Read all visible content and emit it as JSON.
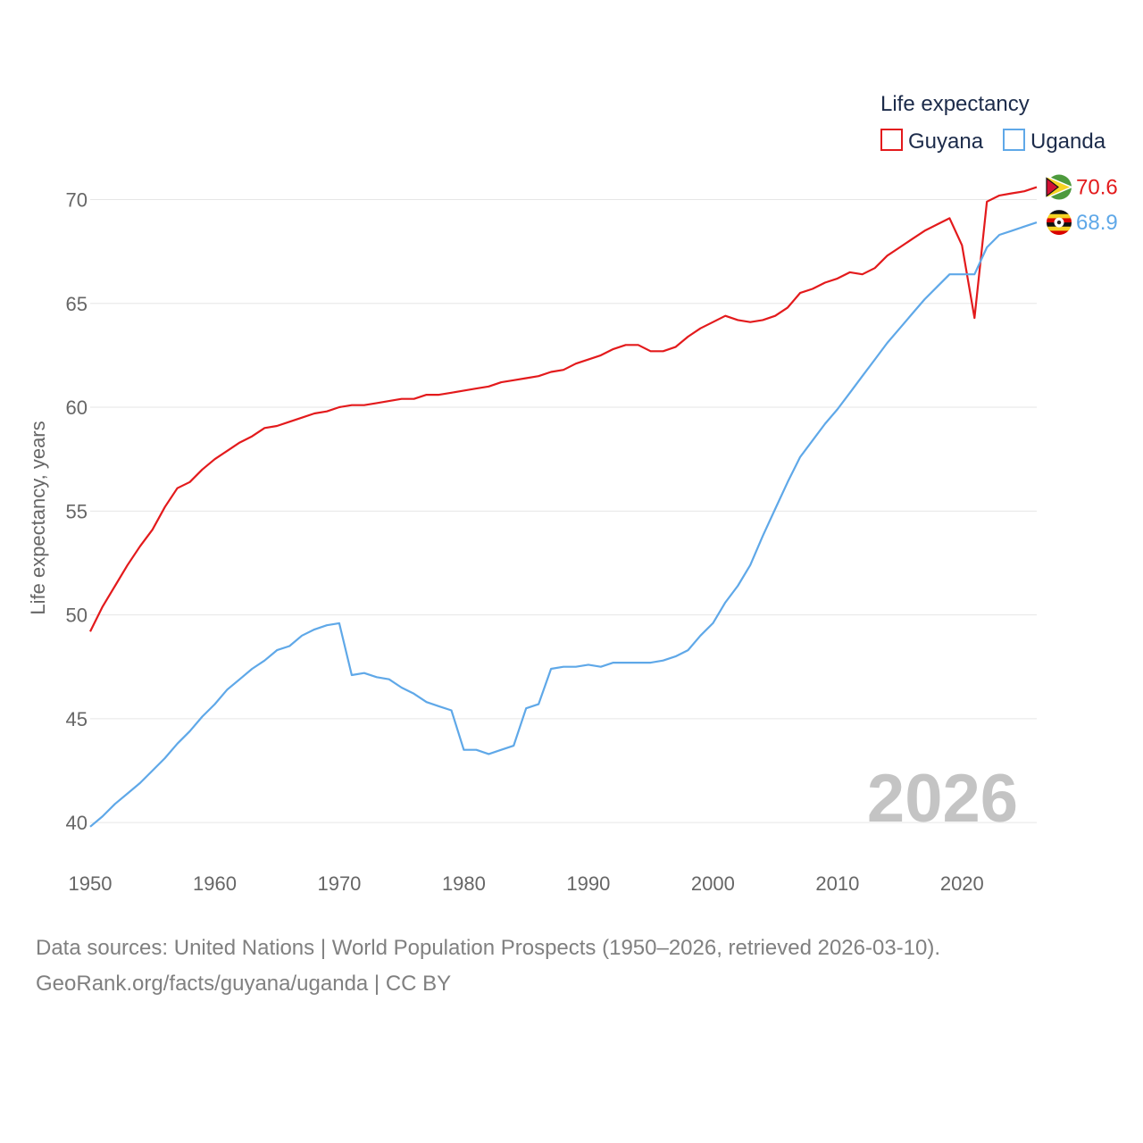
{
  "chart_data": {
    "type": "line",
    "legend_title": "Life expectancy",
    "ylabel": "Life expectancy, years",
    "xlabel": "",
    "xlim": [
      1950,
      2026
    ],
    "ylim": [
      38.5,
      72
    ],
    "xticks": [
      1950,
      1960,
      1970,
      1980,
      1990,
      2000,
      2010,
      2020
    ],
    "yticks": [
      40,
      45,
      50,
      55,
      60,
      65,
      70
    ],
    "year_watermark": "2026",
    "legend_position": "top-right",
    "series": [
      {
        "name": "Guyana",
        "color": "#e31a1c",
        "flag": "guyana-flag-icon",
        "end_label": "70.6",
        "x_start": 1950,
        "values": [
          49.2,
          50.4,
          51.4,
          52.4,
          53.3,
          54.1,
          55.2,
          56.1,
          56.4,
          57.0,
          57.5,
          57.9,
          58.3,
          58.6,
          59.0,
          59.1,
          59.3,
          59.5,
          59.7,
          59.8,
          60.0,
          60.1,
          60.1,
          60.2,
          60.3,
          60.4,
          60.4,
          60.6,
          60.6,
          60.7,
          60.8,
          60.9,
          61.0,
          61.2,
          61.3,
          61.4,
          61.5,
          61.7,
          61.8,
          62.1,
          62.3,
          62.5,
          62.8,
          63.0,
          63.0,
          62.7,
          62.7,
          62.9,
          63.4,
          63.8,
          64.1,
          64.4,
          64.2,
          64.1,
          64.2,
          64.4,
          64.8,
          65.5,
          65.7,
          66.0,
          66.2,
          66.5,
          66.4,
          66.7,
          67.3,
          67.7,
          68.1,
          68.5,
          68.8,
          69.1,
          67.8,
          64.3,
          69.9,
          70.2,
          70.3,
          70.4,
          70.6
        ]
      },
      {
        "name": "Uganda",
        "color": "#5fa8e8",
        "flag": "uganda-flag-icon",
        "end_label": "68.9",
        "x_start": 1950,
        "values": [
          39.8,
          40.3,
          40.9,
          41.4,
          41.9,
          42.5,
          43.1,
          43.8,
          44.4,
          45.1,
          45.7,
          46.4,
          46.9,
          47.4,
          47.8,
          48.3,
          48.5,
          49.0,
          49.3,
          49.5,
          49.6,
          47.1,
          47.2,
          47.0,
          46.9,
          46.5,
          46.2,
          45.8,
          45.6,
          45.4,
          43.5,
          43.5,
          43.3,
          43.5,
          43.7,
          45.5,
          45.7,
          47.4,
          47.5,
          47.5,
          47.6,
          47.5,
          47.7,
          47.7,
          47.7,
          47.7,
          47.8,
          48.0,
          48.3,
          49.0,
          49.6,
          50.6,
          51.4,
          52.4,
          53.8,
          55.1,
          56.4,
          57.6,
          58.4,
          59.2,
          59.9,
          60.7,
          61.5,
          62.3,
          63.1,
          63.8,
          64.5,
          65.2,
          65.8,
          66.4,
          66.4,
          66.4,
          67.7,
          68.3,
          68.5,
          68.7,
          68.9
        ]
      }
    ]
  },
  "source": {
    "line1": "Data sources: United Nations | World Population Prospects (1950–2026, retrieved 2026-03-10).",
    "line2": "GeoRank.org/facts/guyana/uganda | CC BY"
  }
}
